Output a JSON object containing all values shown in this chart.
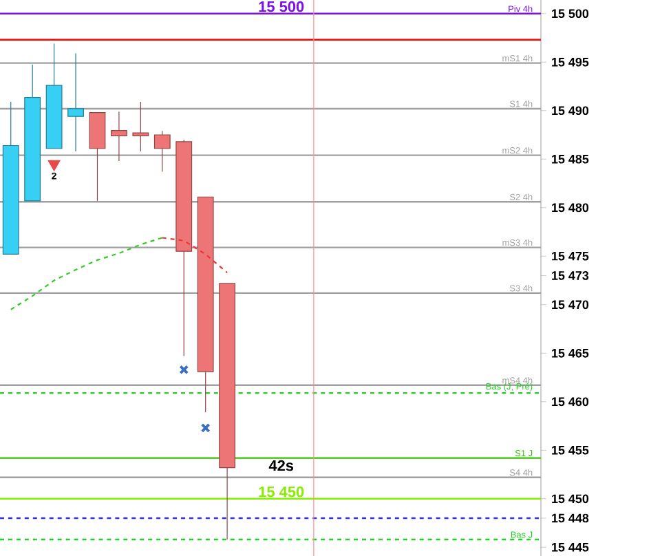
{
  "chart_data": {
    "type": "candlestick",
    "categories": [
      null,
      null,
      null,
      null,
      null,
      null,
      null,
      null,
      null,
      null,
      null,
      null,
      null,
      null,
      null,
      null,
      null,
      null,
      null,
      null,
      null,
      null,
      null,
      null,
      null
    ],
    "ohlc": [
      [
        15475.2,
        15490.9,
        15475.2,
        15486.4
      ],
      [
        15480.7,
        15494.75,
        15480.7,
        15491.35
      ],
      [
        15486.1,
        15496.9,
        15486.1,
        15492.6
      ],
      [
        15489.4,
        15495.9,
        15485.8,
        15490.2
      ],
      [
        15489.8,
        15489.8,
        15480.7,
        15486.1
      ],
      [
        15487.95,
        15489.9,
        15484.8,
        15487.4
      ],
      [
        15487.7,
        15490.9,
        15485.8,
        15487.4
      ],
      [
        15487.5,
        15487.9,
        15483.7,
        15486.1
      ],
      [
        15486.8,
        15487.0,
        15464.7,
        15475.5
      ],
      [
        15481.1,
        15481.1,
        15458.9,
        15463.1
      ],
      [
        15472.2,
        15472.2,
        15445.8,
        15453.2
      ],
      null,
      null,
      null,
      null,
      null,
      null,
      null,
      null,
      null,
      null,
      null,
      null,
      null,
      null
    ],
    "colors": [
      "#38cff5",
      "#38cff5",
      "#38cff5",
      "#38cff5",
      "#ee7575",
      "#ee7575",
      "#ee7575",
      "#ee7575",
      "#ee7575",
      "#ee7575",
      "#ee7575",
      null,
      null,
      null,
      null,
      null,
      null,
      null,
      null,
      null,
      null,
      null,
      null,
      null,
      null
    ],
    "series": [
      {
        "type": "scatter",
        "marker": "cross",
        "color": "#3a6fc0",
        "values": [
          null,
          null,
          null,
          null,
          null,
          null,
          null,
          null,
          15463.3,
          15457.3,
          null,
          null,
          null,
          null,
          null,
          null,
          null,
          null,
          null,
          null,
          null,
          null,
          null,
          null,
          null
        ]
      },
      {
        "type": "scatter",
        "name": "2",
        "marker": "triangle",
        "color": "#e84a4a",
        "values": [
          null,
          null,
          15484.5,
          null,
          null,
          null,
          null,
          null,
          null,
          null,
          null,
          null,
          null,
          null,
          null,
          null,
          null,
          null,
          null,
          null,
          null,
          null,
          null,
          null,
          null
        ]
      },
      {
        "type": "line",
        "line_style": "dashed",
        "color": "#33cc22",
        "values": [
          15469.5,
          15470.9,
          15472.5,
          15473.6,
          15474.6,
          15475.3,
          15476.2,
          15476.9,
          null,
          null,
          null,
          null,
          null,
          null,
          null,
          null,
          null,
          null,
          null,
          null,
          null,
          null,
          null,
          null,
          null
        ]
      },
      {
        "type": "line",
        "line_style": "dashed",
        "color": "#ee3333",
        "values": [
          null,
          null,
          null,
          null,
          null,
          null,
          null,
          15476.9,
          15476.6,
          15475.2,
          15473.3,
          null,
          null,
          null,
          null,
          null,
          null,
          null,
          null,
          null,
          null,
          null,
          null,
          null,
          null
        ]
      }
    ],
    "ylim": [
      15444.1,
      15501.4
    ],
    "yticks": [
      {
        "value": 15445,
        "label": "15 445"
      },
      {
        "value": 15448,
        "label": "15 448"
      },
      {
        "value": 15450,
        "label": "15 450"
      },
      {
        "value": 15455,
        "label": "15 455"
      },
      {
        "value": 15460,
        "label": "15 460"
      },
      {
        "value": 15465,
        "label": "15 465"
      },
      {
        "value": 15470,
        "label": "15 470"
      },
      {
        "value": 15473,
        "label": "15 473"
      },
      {
        "value": 15475,
        "label": "15 475"
      },
      {
        "value": 15480,
        "label": "15 480"
      },
      {
        "value": 15485,
        "label": "15 485"
      },
      {
        "value": 15490,
        "label": "15 490"
      },
      {
        "value": 15495,
        "label": "15 495"
      },
      {
        "value": 15500,
        "label": "15 500"
      }
    ],
    "tick_labels": "y",
    "ref_lines": [
      {
        "axis": "y",
        "value": 15500,
        "label": "Piv 4h",
        "color": "#7a10f0"
      },
      {
        "axis": "y",
        "value": 15497.3,
        "color": "#ff0000"
      },
      {
        "axis": "y",
        "value": 15494.9,
        "label": "mS1 4h",
        "color": "#a0a0a0"
      },
      {
        "axis": "y",
        "value": 15490.2,
        "label": "S1 4h",
        "color": "#a0a0a0"
      },
      {
        "axis": "y",
        "value": 15485.4,
        "label": "mS2 4h",
        "color": "#a0a0a0"
      },
      {
        "axis": "y",
        "value": 15480.6,
        "label": "S2 4h",
        "color": "#a0a0a0"
      },
      {
        "axis": "y",
        "value": 15475.9,
        "label": "mS3 4h",
        "color": "#a0a0a0"
      },
      {
        "axis": "y",
        "value": 15471.2,
        "label": "S3 4h",
        "color": "#a0a0a0"
      },
      {
        "axis": "y",
        "value": 15461.7,
        "label": "mS4 4h",
        "color": "#a0a0a0"
      },
      {
        "axis": "y",
        "value": 15460.9,
        "label": "Bas (J, Pré)",
        "color": "#22cc22",
        "line_style": "dashed"
      },
      {
        "axis": "y",
        "value": 15454.2,
        "label": "S1 J",
        "color": "#33c200"
      },
      {
        "axis": "y",
        "value": 15452.2,
        "label": "S4 4h",
        "color": "#a0a0a0"
      },
      {
        "axis": "y",
        "value": 15450,
        "color": "#88ee00"
      },
      {
        "axis": "y",
        "value": 15448,
        "color": "#3333dd",
        "line_style": "dashed"
      },
      {
        "axis": "y",
        "value": 15445.8,
        "label": "Bas J",
        "color": "#22cc22",
        "line_style": "dashed"
      }
    ],
    "annotations": [
      {
        "text": "15 500",
        "y": 15500
      },
      {
        "text": "15 450",
        "y": 15450
      },
      {
        "text": "42s",
        "y": 15452.7
      }
    ]
  }
}
